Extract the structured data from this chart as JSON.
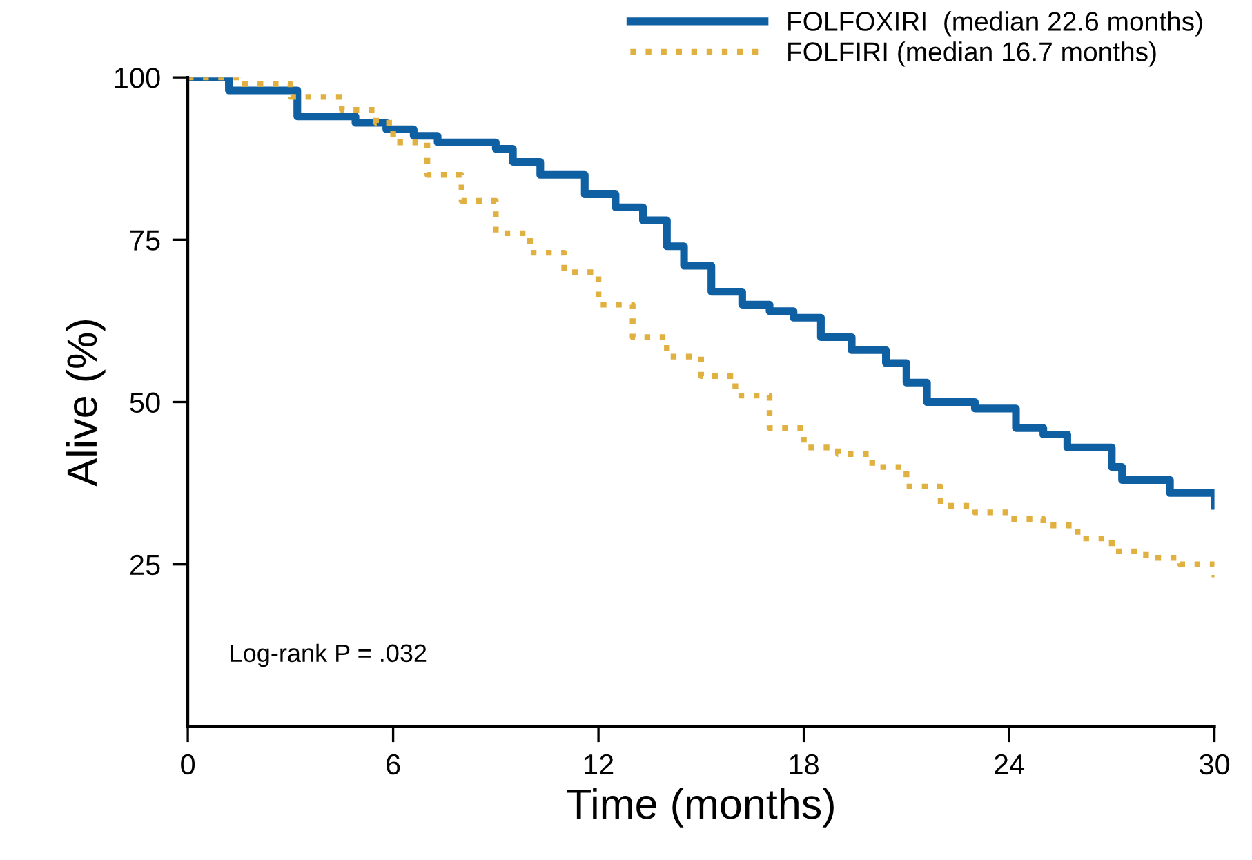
{
  "chart_data": {
    "type": "step",
    "xlabel": "Time (months)",
    "ylabel": "Alive (%)",
    "xlim": [
      0,
      30
    ],
    "ylim": [
      0,
      100
    ],
    "xticks": [
      0,
      6,
      12,
      18,
      24,
      30
    ],
    "yticks": [
      25,
      50,
      75,
      100
    ],
    "grid": false,
    "legend": "top right",
    "marker": "none",
    "annotations": [
      "Log-rank P = .032"
    ],
    "series": [
      {
        "name": "FOLFOXIRI  (median 22.6 months)",
        "color": "#0f5fa3",
        "line_style": "solid",
        "x": [
          0,
          1.2,
          3.2,
          4.9,
          5.8,
          6.6,
          7.3,
          9.0,
          9.5,
          10.3,
          11.6,
          12.5,
          13.3,
          14.0,
          14.5,
          15.3,
          16.2,
          17.0,
          17.7,
          18.5,
          19.4,
          20.4,
          21.0,
          21.6,
          23.0,
          24.2,
          25.0,
          25.7,
          27.0,
          27.3,
          28.7,
          30.0
        ],
        "values": [
          100,
          98,
          94,
          93,
          92,
          91,
          90,
          89,
          87,
          85,
          82,
          80,
          78,
          74,
          71,
          67,
          65,
          64,
          63,
          60,
          58,
          56,
          53,
          50,
          49,
          46,
          45,
          43,
          40,
          38,
          36,
          34
        ]
      },
      {
        "name": "FOLFIRI (median 16.7 months)",
        "color": "#e0b040",
        "line_style": "dotted",
        "x": [
          0,
          1.5,
          3.0,
          4.5,
          5.5,
          6.0,
          7.0,
          8.0,
          9.0,
          10.0,
          11.0,
          12.0,
          13.0,
          14.0,
          15.0,
          16.0,
          17.0,
          18.0,
          19.0,
          20.0,
          21.0,
          22.0,
          23.0,
          24.0,
          25.0,
          26.0,
          27.0,
          28.0,
          29.0,
          30.0
        ],
        "values": [
          100,
          99,
          97,
          95,
          93,
          90,
          85,
          81,
          76,
          73,
          70,
          65,
          60,
          57,
          54,
          51,
          46,
          43,
          42,
          40,
          37,
          34,
          33,
          32,
          31,
          29,
          27,
          26,
          25,
          23
        ]
      }
    ]
  }
}
